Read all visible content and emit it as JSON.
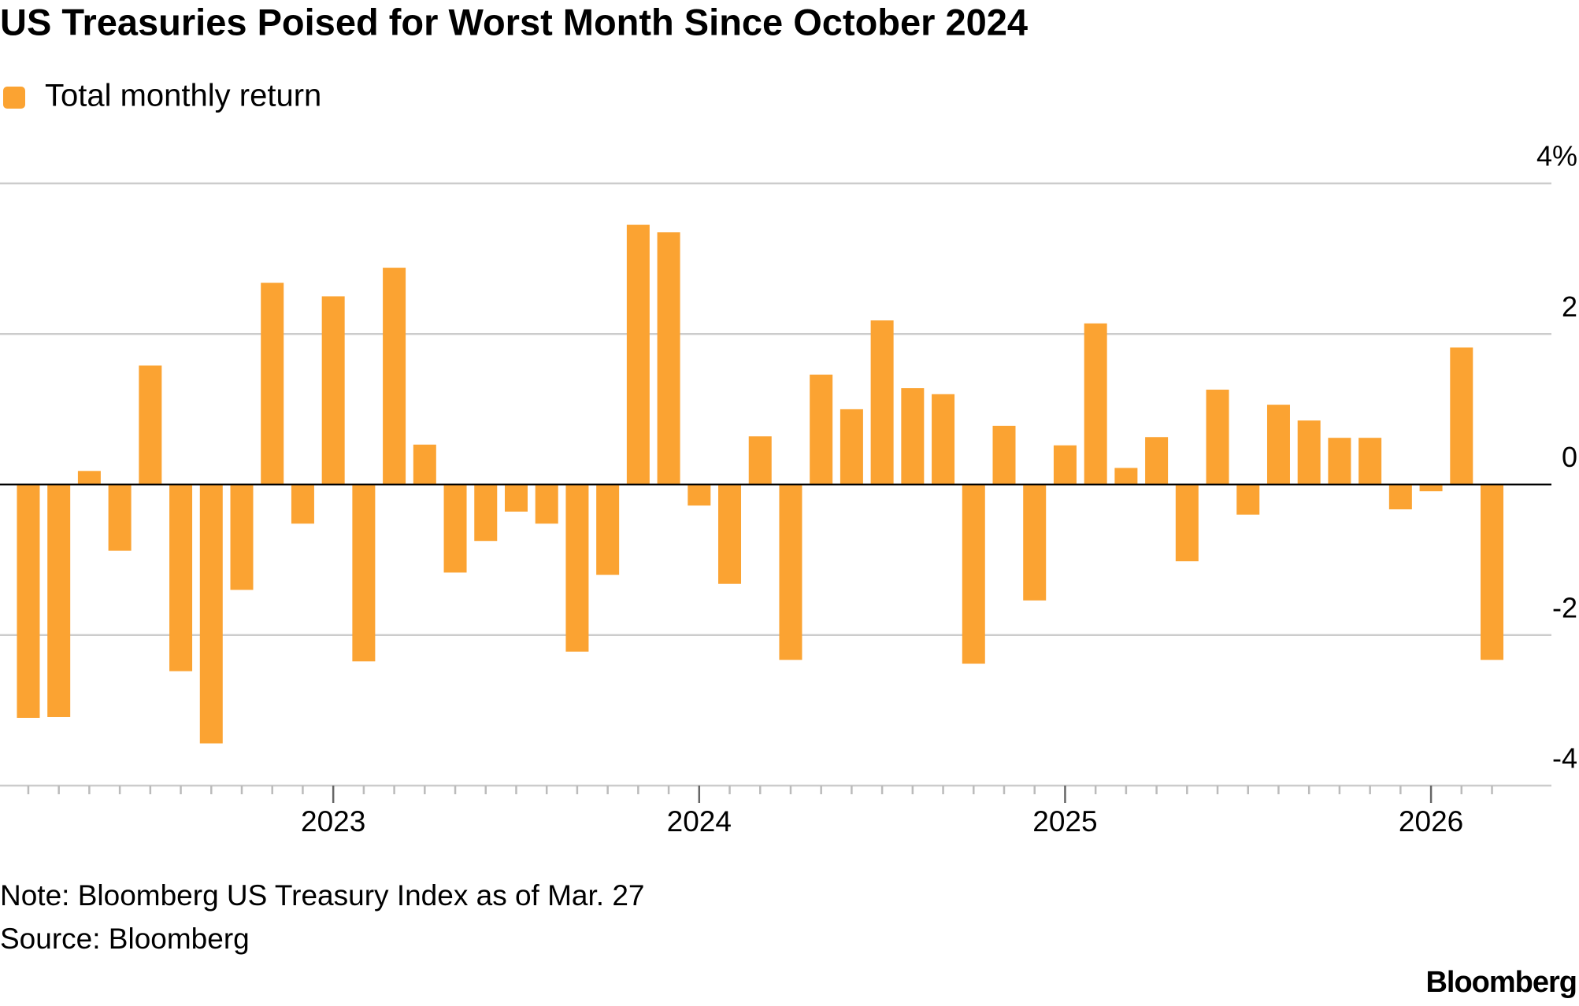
{
  "chart_data": {
    "type": "bar",
    "title": "US Treasuries Poised for Worst Month Since October 2024",
    "series": [
      {
        "name": "Total monthly return",
        "color": "#fba332",
        "values": [
          -3.1,
          -3.09,
          0.18,
          -0.88,
          1.58,
          -2.48,
          -3.44,
          -1.4,
          2.68,
          -0.52,
          2.5,
          -2.35,
          2.88,
          0.53,
          -1.17,
          -0.75,
          -0.36,
          -0.52,
          -2.22,
          -1.2,
          3.45,
          3.35,
          -0.28,
          -1.32,
          0.64,
          -2.33,
          1.46,
          1.0,
          2.18,
          1.28,
          1.2,
          -2.38,
          0.78,
          -1.54,
          0.52,
          2.14,
          0.22,
          0.63,
          -1.02,
          1.26,
          -0.4,
          1.06,
          0.85,
          0.62,
          0.62,
          -0.33,
          -0.09,
          1.82,
          -2.33
        ]
      }
    ],
    "categories": [
      null,
      null,
      null,
      null,
      null,
      null,
      null,
      null,
      null,
      null,
      "2023",
      null,
      null,
      null,
      null,
      null,
      null,
      null,
      null,
      null,
      null,
      null,
      "2024",
      null,
      null,
      null,
      null,
      null,
      null,
      null,
      null,
      null,
      null,
      null,
      "2025",
      null,
      null,
      null,
      null,
      null,
      null,
      null,
      null,
      null,
      null,
      null,
      "2026",
      null,
      null
    ],
    "ylim": [
      -4,
      4
    ],
    "yticks": [
      -4,
      -2,
      0,
      2,
      {
        "value": 4,
        "label": "4%"
      }
    ],
    "grid": true,
    "note": "Note: Bloomberg US Treasury Index as of Mar. 27",
    "source": "Source: Bloomberg",
    "brand": "Bloomberg"
  }
}
